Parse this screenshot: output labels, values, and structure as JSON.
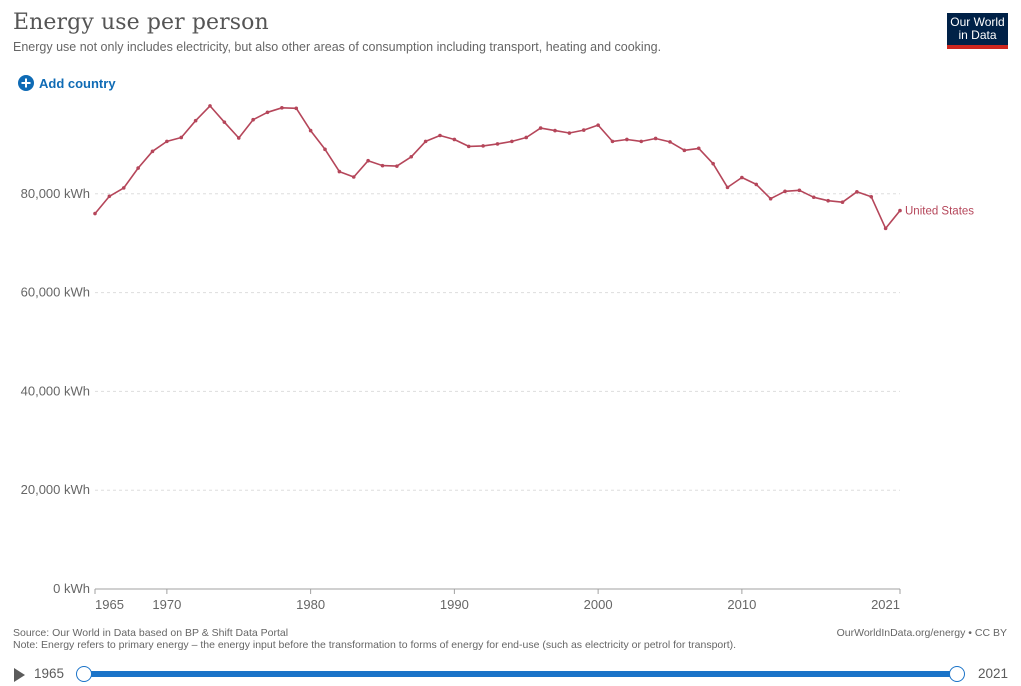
{
  "header": {
    "title": "Energy use per person",
    "subtitle": "Energy use not only includes electricity, but also other areas of consumption including transport, heating and cooking.",
    "logo_line1": "Our World",
    "logo_line2": "in Data"
  },
  "controls": {
    "add_country_label": "Add country"
  },
  "colors": {
    "series": "#b5465a",
    "accent": "#0f6bb5",
    "logo_bg": "#002147",
    "logo_bar": "#ce261e"
  },
  "chart_data": {
    "type": "line",
    "title": "Energy use per person",
    "y_ticks": [
      0,
      20000,
      40000,
      60000,
      80000
    ],
    "y_tick_labels": [
      "0 kWh",
      "20,000 kWh",
      "40,000 kWh",
      "60,000 kWh",
      "80,000 kWh"
    ],
    "ylim": [
      0,
      100000
    ],
    "xlim": [
      1965,
      2021
    ],
    "x_ticks": [
      1965,
      1970,
      1980,
      1990,
      2000,
      2010,
      2021
    ],
    "x_tick_labels": [
      "1965",
      "1970",
      "1980",
      "1990",
      "2000",
      "2010",
      "2021"
    ],
    "grid": "horizontal dashed",
    "series": [
      {
        "name": "United States",
        "x": [
          1965,
          1966,
          1967,
          1968,
          1969,
          1970,
          1971,
          1972,
          1973,
          1974,
          1975,
          1976,
          1977,
          1978,
          1979,
          1980,
          1981,
          1982,
          1983,
          1984,
          1985,
          1986,
          1987,
          1988,
          1989,
          1990,
          1991,
          1992,
          1993,
          1994,
          1995,
          1996,
          1997,
          1998,
          1999,
          2000,
          2001,
          2002,
          2003,
          2004,
          2005,
          2006,
          2007,
          2008,
          2009,
          2010,
          2011,
          2012,
          2013,
          2014,
          2015,
          2016,
          2017,
          2018,
          2019,
          2020,
          2021
        ],
        "values": [
          76000,
          79500,
          81200,
          85200,
          88600,
          90600,
          91400,
          94800,
          97800,
          94500,
          91300,
          95000,
          96500,
          97400,
          97300,
          92800,
          89000,
          84500,
          83400,
          86700,
          85700,
          85600,
          87500,
          90600,
          91800,
          91000,
          89600,
          89700,
          90100,
          90600,
          91400,
          93300,
          92800,
          92300,
          92900,
          93900,
          90600,
          91000,
          90600,
          91200,
          90500,
          88800,
          89200,
          86100,
          81300,
          83300,
          81900,
          79000,
          80500,
          80700,
          79300,
          78600,
          78300,
          80400,
          79400,
          73000,
          76600
        ]
      }
    ]
  },
  "footer": {
    "source": "Source: Our World in Data based on BP & Shift Data Portal",
    "note": "Note: Energy refers to primary energy – the energy input before the transformation to forms of energy for end-use (such as electricity or petrol for transport).",
    "credit": "OurWorldInData.org/energy • CC BY"
  },
  "timeline": {
    "start_label": "1965",
    "end_label": "2021",
    "start_fraction": 0,
    "end_fraction": 1
  }
}
